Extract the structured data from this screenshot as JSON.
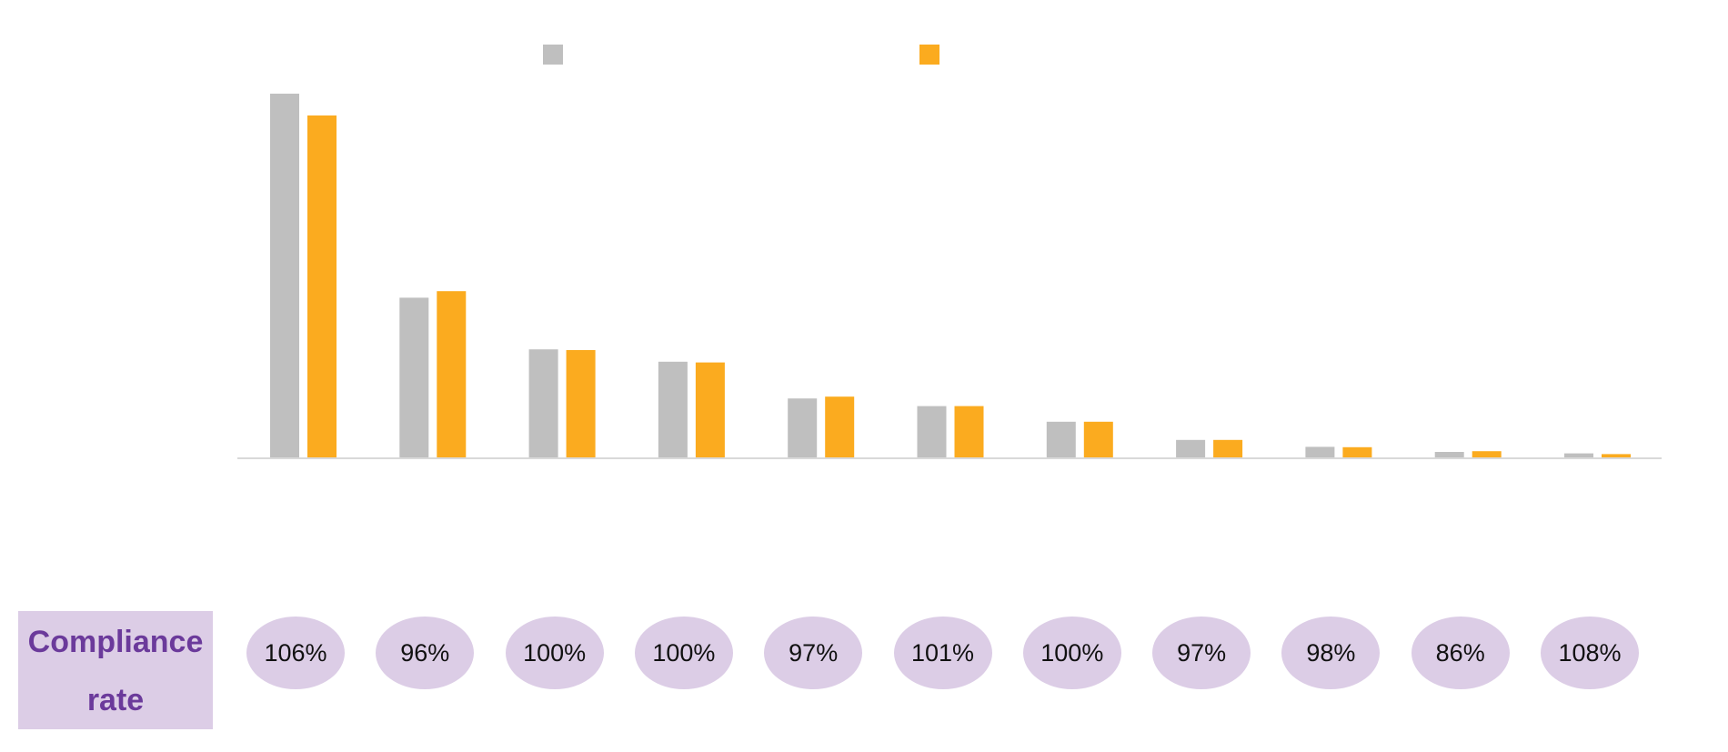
{
  "chart_data": {
    "type": "bar",
    "title": "",
    "xlabel": "",
    "ylabel": "",
    "categories": [
      "",
      "",
      "",
      "",
      "",
      "",
      "",
      "",
      "",
      "",
      ""
    ],
    "series": [
      {
        "color": "#bfbfbf",
        "values": [
          100,
          43.9,
          29.7,
          26.3,
          16.2,
          14.1,
          9.8,
          4.8,
          2.9,
          1.5,
          1.1
        ]
      },
      {
        "color": "#fbab1f",
        "values": [
          94.0,
          45.7,
          29.5,
          26.1,
          16.7,
          14.1,
          9.8,
          4.8,
          2.8,
          1.7,
          0.9
        ]
      }
    ],
    "ylim": [
      0,
      100
    ],
    "grid": false,
    "legend_position": "top"
  },
  "compliance": {
    "label": "Compliance rate",
    "rates": [
      "106%",
      "96%",
      "100%",
      "100%",
      "97%",
      "101%",
      "100%",
      "97%",
      "98%",
      "86%",
      "108%"
    ]
  },
  "colors": {
    "bubble_fill": "#dccde6",
    "label_text": "#6b3a9b",
    "axis": "#d9d9d9"
  }
}
